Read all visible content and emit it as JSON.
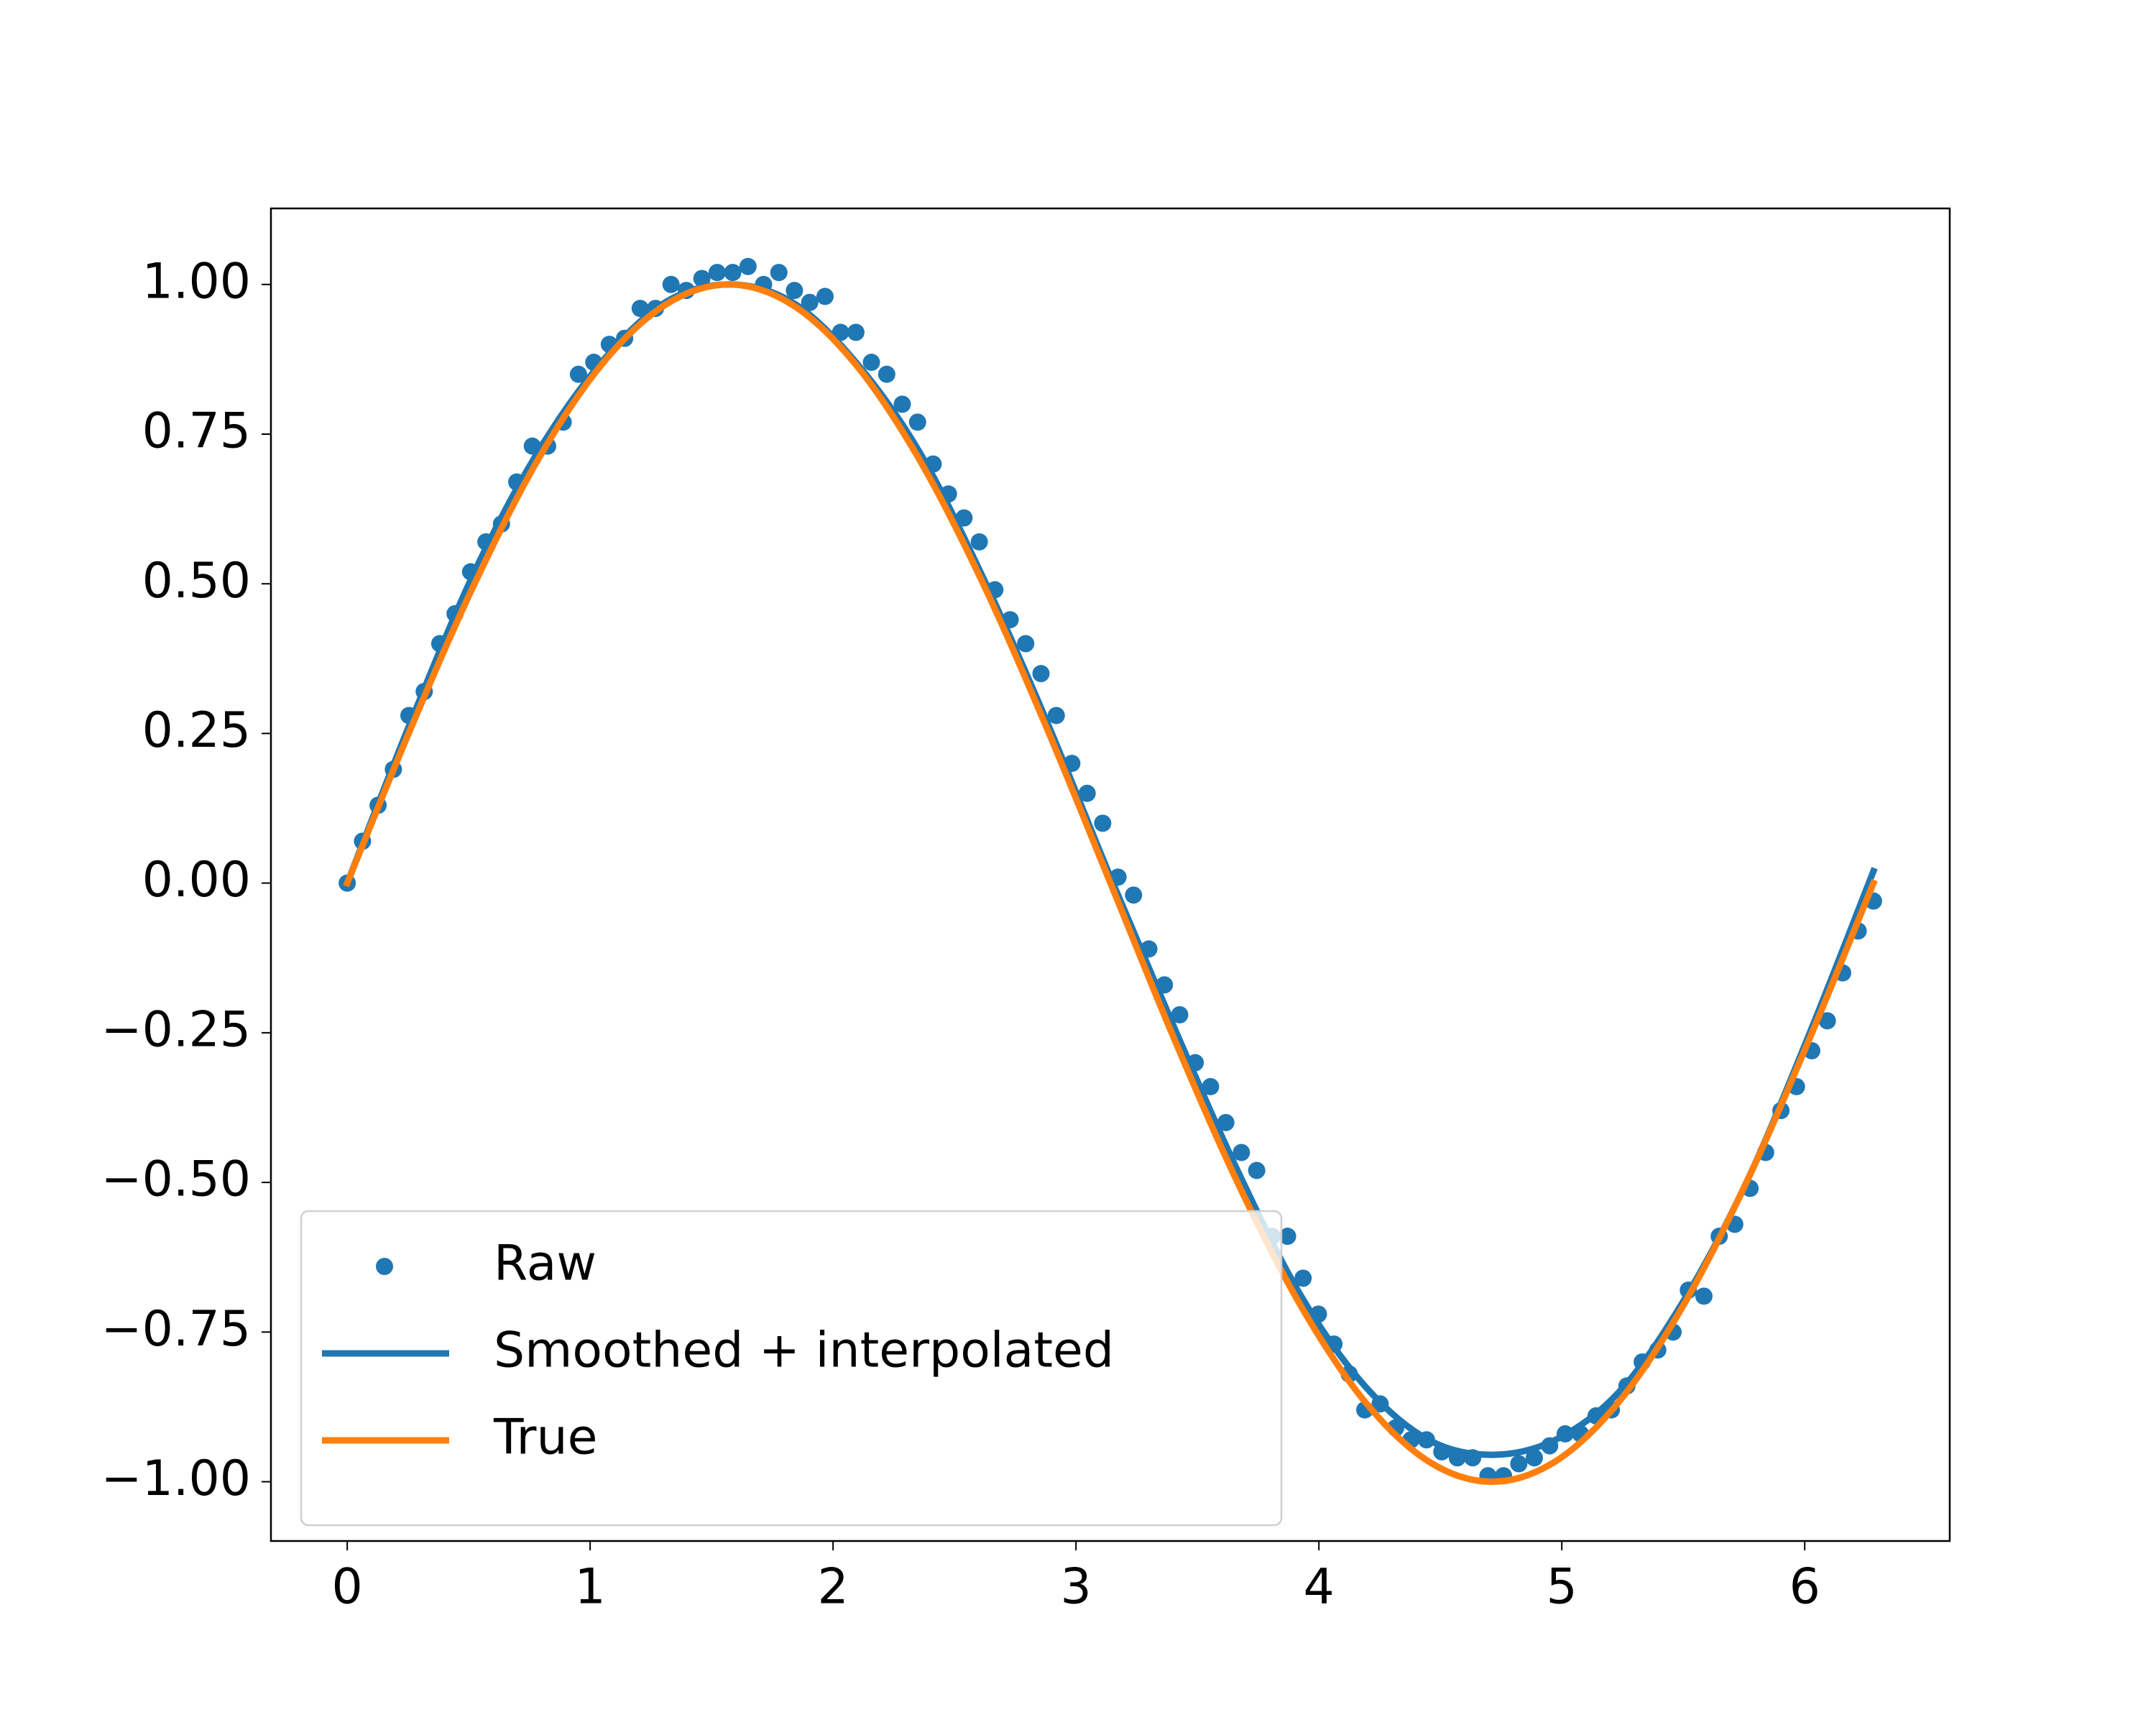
{
  "chart_data": {
    "type": "line",
    "xlim": [
      -0.314,
      6.597
    ],
    "ylim": [
      -1.099,
      1.127
    ],
    "xticks": [
      0,
      1,
      2,
      3,
      4,
      5,
      6
    ],
    "yticks": [
      {
        "value": -1.0,
        "label": "−1.00"
      },
      {
        "value": -0.75,
        "label": "−0.75"
      },
      {
        "value": -0.5,
        "label": "−0.50"
      },
      {
        "value": -0.25,
        "label": "−0.25"
      },
      {
        "value": 0.0,
        "label": "0.00"
      },
      {
        "value": 0.25,
        "label": "0.25"
      },
      {
        "value": 0.5,
        "label": "0.50"
      },
      {
        "value": 0.75,
        "label": "0.75"
      },
      {
        "value": 1.0,
        "label": "1.00"
      }
    ],
    "legend": "lower left",
    "series": [
      {
        "name": "Raw",
        "kind": "scatter",
        "color": "#1f77b4",
        "x": [
          0,
          0.063,
          0.127,
          0.19,
          0.254,
          0.317,
          0.381,
          0.444,
          0.508,
          0.571,
          0.635,
          0.698,
          0.762,
          0.825,
          0.889,
          0.952,
          1.015,
          1.079,
          1.142,
          1.206,
          1.269,
          1.333,
          1.396,
          1.46,
          1.523,
          1.587,
          1.65,
          1.714,
          1.777,
          1.841,
          1.904,
          1.967,
          2.031,
          2.094,
          2.158,
          2.221,
          2.285,
          2.348,
          2.412,
          2.475,
          2.539,
          2.602,
          2.666,
          2.729,
          2.793,
          2.856,
          2.919,
          2.983,
          3.046,
          3.11,
          3.173,
          3.237,
          3.3,
          3.364,
          3.427,
          3.491,
          3.554,
          3.617,
          3.681,
          3.744,
          3.808,
          3.871,
          3.935,
          3.998,
          4.062,
          4.125,
          4.189,
          4.252,
          4.316,
          4.379,
          4.443,
          4.506,
          4.57,
          4.633,
          4.696,
          4.76,
          4.823,
          4.887,
          4.95,
          5.014,
          5.077,
          5.141,
          5.204,
          5.268,
          5.331,
          5.395,
          5.458,
          5.521,
          5.585,
          5.648,
          5.712,
          5.775,
          5.839,
          5.902,
          5.966,
          6.029,
          6.093,
          6.156,
          6.22,
          6.283
        ],
        "values": [
          0.0,
          0.07,
          0.13,
          0.19,
          0.28,
          0.32,
          0.4,
          0.45,
          0.52,
          0.57,
          0.6,
          0.67,
          0.73,
          0.73,
          0.77,
          0.85,
          0.87,
          0.9,
          0.91,
          0.96,
          0.96,
          1.0,
          0.99,
          1.01,
          1.02,
          1.02,
          1.03,
          1.0,
          1.02,
          0.99,
          0.97,
          0.98,
          0.92,
          0.92,
          0.87,
          0.85,
          0.8,
          0.77,
          0.7,
          0.65,
          0.61,
          0.57,
          0.49,
          0.44,
          0.4,
          0.35,
          0.28,
          0.2,
          0.15,
          0.1,
          0.01,
          -0.02,
          -0.11,
          -0.17,
          -0.22,
          -0.3,
          -0.34,
          -0.4,
          -0.45,
          -0.48,
          -0.59,
          -0.59,
          -0.66,
          -0.72,
          -0.77,
          -0.82,
          -0.88,
          -0.87,
          -0.91,
          -0.93,
          -0.93,
          -0.95,
          -0.96,
          -0.96,
          -0.99,
          -0.99,
          -0.97,
          -0.96,
          -0.94,
          -0.92,
          -0.92,
          -0.89,
          -0.88,
          -0.84,
          -0.8,
          -0.78,
          -0.75,
          -0.68,
          -0.69,
          -0.59,
          -0.57,
          -0.51,
          -0.45,
          -0.38,
          -0.34,
          -0.28,
          -0.23,
          -0.15,
          -0.08,
          -0.03
        ]
      },
      {
        "name": "Smoothed + interpolated",
        "kind": "line",
        "color": "#1f77b4",
        "x": [
          0,
          0.262,
          0.524,
          0.785,
          1.047,
          1.309,
          1.571,
          1.833,
          2.094,
          2.356,
          2.618,
          2.88,
          3.142,
          3.403,
          3.665,
          3.927,
          4.189,
          4.451,
          4.712,
          4.974,
          5.236,
          5.498,
          5.76,
          6.021,
          6.283
        ],
        "values": [
          0.0,
          0.27,
          0.52,
          0.72,
          0.87,
          0.97,
          1.0,
          0.97,
          0.87,
          0.72,
          0.51,
          0.27,
          0.01,
          -0.24,
          -0.48,
          -0.69,
          -0.84,
          -0.93,
          -0.955,
          -0.93,
          -0.85,
          -0.7,
          -0.5,
          -0.25,
          0.02
        ]
      },
      {
        "name": "True",
        "kind": "line",
        "color": "#ff7f0e",
        "x": [
          0,
          0.262,
          0.524,
          0.785,
          1.047,
          1.309,
          1.571,
          1.833,
          2.094,
          2.356,
          2.618,
          2.88,
          3.142,
          3.403,
          3.665,
          3.927,
          4.189,
          4.451,
          4.712,
          4.974,
          5.236,
          5.498,
          5.76,
          6.021,
          6.283
        ],
        "values": [
          0,
          0.2588,
          0.5,
          0.7071,
          0.866,
          0.9659,
          1,
          0.9659,
          0.866,
          0.7071,
          0.5,
          0.2588,
          0,
          -0.2588,
          -0.5,
          -0.7071,
          -0.866,
          -0.9659,
          -1,
          -0.9659,
          -0.866,
          -0.7071,
          -0.5,
          -0.2588,
          0
        ]
      }
    ]
  }
}
